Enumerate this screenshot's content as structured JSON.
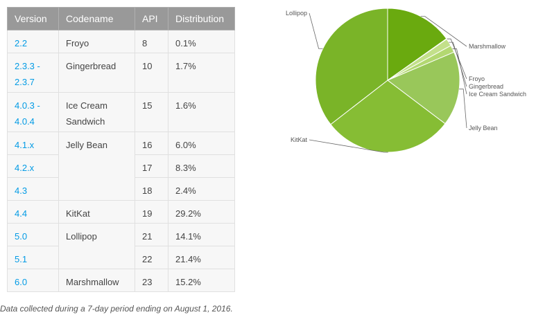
{
  "table": {
    "headers": [
      "Version",
      "Codename",
      "API",
      "Distribution"
    ],
    "rows": [
      {
        "version": "2.2",
        "codename": "Froyo",
        "api": "8",
        "dist": "0.1%"
      },
      {
        "version": "2.3.3 - 2.3.7",
        "codename": "Gingerbread",
        "api": "10",
        "dist": "1.7%"
      },
      {
        "version": "4.0.3 - 4.0.4",
        "codename": "Ice Cream Sandwich",
        "api": "15",
        "dist": "1.6%"
      },
      {
        "version": "4.1.x",
        "codename": "Jelly Bean",
        "api": "16",
        "dist": "6.0%"
      },
      {
        "version": "4.2.x",
        "codename": "",
        "api": "17",
        "dist": "8.3%"
      },
      {
        "version": "4.3",
        "codename": "",
        "api": "18",
        "dist": "2.4%"
      },
      {
        "version": "4.4",
        "codename": "KitKat",
        "api": "19",
        "dist": "29.2%"
      },
      {
        "version": "5.0",
        "codename": "Lollipop",
        "api": "21",
        "dist": "14.1%"
      },
      {
        "version": "5.1",
        "codename": "",
        "api": "22",
        "dist": "21.4%"
      },
      {
        "version": "6.0",
        "codename": "Marshmallow",
        "api": "23",
        "dist": "15.2%"
      }
    ]
  },
  "footnote": "Data collected during a 7-day period ending on August 1, 2016.",
  "chart_data": {
    "type": "pie",
    "title": "",
    "slices": [
      {
        "label": "Marshmallow",
        "value": 15.2,
        "color": "#6aaa0f"
      },
      {
        "label": "Froyo",
        "value": 0.1,
        "color": "#d2e8a4"
      },
      {
        "label": "Gingerbread",
        "value": 1.7,
        "color": "#c3e08a"
      },
      {
        "label": "Ice Cream Sandwich",
        "value": 1.6,
        "color": "#b3d871"
      },
      {
        "label": "Jelly Bean",
        "value": 16.7,
        "color": "#99c75a"
      },
      {
        "label": "KitKat",
        "value": 29.2,
        "color": "#86bd34"
      },
      {
        "label": "Lollipop",
        "value": 35.5,
        "color": "#7ab428"
      }
    ]
  }
}
